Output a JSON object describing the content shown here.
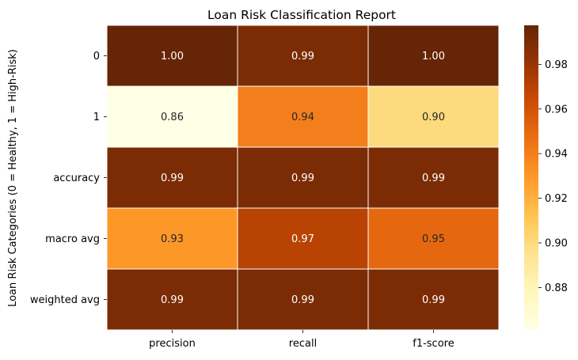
{
  "chart_data": {
    "type": "heatmap",
    "title": "Loan Risk Classification Report",
    "ylabel": "Loan Risk Categories (0 = Healthy, 1 = High-Risk)",
    "xlabel": "",
    "x_categories": [
      "precision",
      "recall",
      "f1-score"
    ],
    "y_categories": [
      "0",
      "1",
      "accuracy",
      "macro avg",
      "weighted avg"
    ],
    "values": [
      [
        1.0,
        0.99,
        1.0
      ],
      [
        0.86,
        0.94,
        0.9
      ],
      [
        0.99,
        0.99,
        0.99
      ],
      [
        0.93,
        0.97,
        0.95
      ],
      [
        0.99,
        0.99,
        0.99
      ]
    ],
    "value_labels": [
      [
        "1.00",
        "0.99",
        "1.00"
      ],
      [
        "0.86",
        "0.94",
        "0.90"
      ],
      [
        "0.99",
        "0.99",
        "0.99"
      ],
      [
        "0.93",
        "0.97",
        "0.95"
      ],
      [
        "0.99",
        "0.99",
        "0.99"
      ]
    ],
    "colorbar": {
      "vmin": 0.861,
      "vmax": 0.9975,
      "ticks": [
        0.88,
        0.9,
        0.92,
        0.94,
        0.96,
        0.98
      ],
      "tick_labels": [
        "0.88",
        "0.90",
        "0.92",
        "0.94",
        "0.96",
        "0.98"
      ]
    },
    "colormap": "YlOrBr",
    "colormap_stops": [
      "#ffffe5",
      "#fff7bc",
      "#fee391",
      "#fec44f",
      "#fe9929",
      "#ec7014",
      "#cc4c02",
      "#993404",
      "#662506"
    ]
  }
}
